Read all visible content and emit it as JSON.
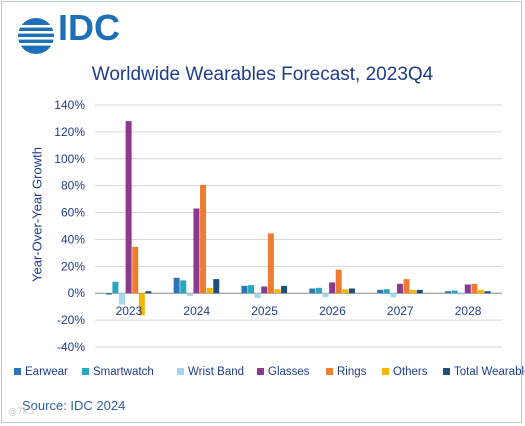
{
  "logo": {
    "text": "IDC",
    "icon": "globe-icon",
    "color": "#1d6fb8"
  },
  "source": "Source: IDC 2024",
  "watermark": "@7K3",
  "chart_data": {
    "type": "bar",
    "title": "Worldwide Wearables Forecast, 2023Q4",
    "ylabel": "Year-Over-Year Growth",
    "xlabel": "",
    "categories": [
      "2023",
      "2024",
      "2025",
      "2026",
      "2027",
      "2028"
    ],
    "ylim": [
      -40,
      140
    ],
    "yticks": [
      -40,
      -20,
      0,
      20,
      40,
      60,
      80,
      100,
      120,
      140
    ],
    "ytick_labels": [
      "-40%",
      "-20%",
      "0%",
      "20%",
      "40%",
      "60%",
      "80%",
      "100%",
      "120%",
      "140%"
    ],
    "grid": true,
    "legend_position": "bottom",
    "series": [
      {
        "name": "Earwear",
        "color": "#2e75b6",
        "values": [
          -1,
          11.5,
          5.5,
          3.5,
          2.5,
          1.5
        ]
      },
      {
        "name": "Smartwatch",
        "color": "#2aa7c0",
        "values": [
          8.5,
          9.5,
          6,
          4,
          3,
          2
        ]
      },
      {
        "name": "Wrist Band",
        "color": "#a6d8ec",
        "values": [
          -8.5,
          -2,
          -3.5,
          -3,
          -3,
          -1
        ]
      },
      {
        "name": "Glasses",
        "color": "#8b3a8f",
        "values": [
          128,
          63,
          5,
          8,
          7,
          6.5
        ]
      },
      {
        "name": "Rings",
        "color": "#ef7d31",
        "values": [
          34.5,
          80.5,
          44.5,
          17.5,
          10.5,
          7
        ]
      },
      {
        "name": "Others",
        "color": "#f5b800",
        "values": [
          -16.5,
          4,
          3,
          3,
          2.5,
          2.5
        ]
      },
      {
        "name": "Total Wearables",
        "color": "#1f4e79",
        "values": [
          1.5,
          10.5,
          5.5,
          3.5,
          2.5,
          1.5
        ]
      }
    ]
  }
}
